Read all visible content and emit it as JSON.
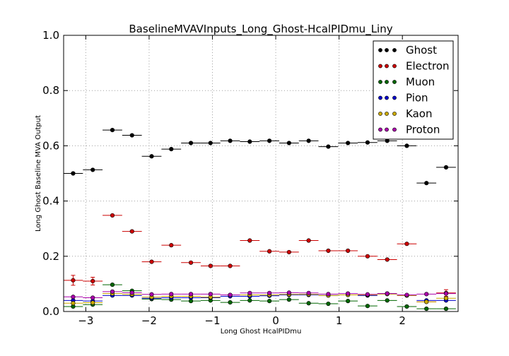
{
  "chart_data": {
    "type": "scatter",
    "title": "BaselineMVAVInputs_Long_Ghost-HcalPIDmu_Liny",
    "xlabel": "Long Ghost HcalPIDmu",
    "ylabel": "Long Ghost Baseline MVA Output",
    "xlim": [
      -3.35,
      2.88
    ],
    "ylim": [
      0.0,
      1.0
    ],
    "xticks": [
      -3,
      -2,
      -1,
      0,
      1,
      2
    ],
    "xtick_labels": [
      "−3",
      "−2",
      "−1",
      "0",
      "1",
      "2"
    ],
    "yticks": [
      0.0,
      0.2,
      0.4,
      0.6,
      0.8,
      1.0
    ],
    "ytick_labels": [
      "0.0",
      "0.2",
      "0.4",
      "0.6",
      "0.8",
      "1.0"
    ],
    "grid": true,
    "legend_position": "top-right",
    "bin_half_width": 0.155,
    "x": [
      -3.2,
      -2.89,
      -2.58,
      -2.27,
      -1.96,
      -1.65,
      -1.34,
      -1.03,
      -0.72,
      -0.41,
      -0.1,
      0.21,
      0.52,
      0.83,
      1.14,
      1.45,
      1.76,
      2.07,
      2.38,
      2.69
    ],
    "series": [
      {
        "name": "Ghost",
        "color": "#000000",
        "values": [
          0.5,
          0.513,
          0.657,
          0.638,
          0.562,
          0.588,
          0.61,
          0.61,
          0.618,
          0.615,
          0.618,
          0.61,
          0.618,
          0.597,
          0.61,
          0.612,
          0.618,
          0.6,
          0.465,
          0.522
        ],
        "errors": [
          0.005,
          0.005,
          0.004,
          0.004,
          0.004,
          0.004,
          0.003,
          0.003,
          0.003,
          0.003,
          0.003,
          0.003,
          0.003,
          0.003,
          0.003,
          0.003,
          0.003,
          0.004,
          0.005,
          0.005
        ]
      },
      {
        "name": "Electron",
        "color": "#cc0000",
        "values": [
          0.113,
          0.11,
          0.348,
          0.29,
          0.18,
          0.24,
          0.177,
          0.165,
          0.165,
          0.257,
          0.218,
          0.215,
          0.257,
          0.22,
          0.22,
          0.2,
          0.188,
          0.245,
          0.035,
          0.067
        ],
        "errors": [
          0.018,
          0.014,
          0.005,
          0.004,
          0.004,
          0.004,
          0.003,
          0.003,
          0.003,
          0.003,
          0.003,
          0.003,
          0.003,
          0.003,
          0.003,
          0.003,
          0.003,
          0.004,
          0.005,
          0.012
        ]
      },
      {
        "name": "Muon",
        "color": "#006600",
        "values": [
          0.018,
          0.025,
          0.097,
          0.075,
          0.045,
          0.043,
          0.038,
          0.04,
          0.033,
          0.04,
          0.038,
          0.043,
          0.03,
          0.028,
          0.038,
          0.02,
          0.04,
          0.018,
          0.01,
          0.01
        ],
        "errors": [
          0.003,
          0.003,
          0.003,
          0.003,
          0.002,
          0.002,
          0.002,
          0.002,
          0.002,
          0.002,
          0.002,
          0.002,
          0.002,
          0.002,
          0.002,
          0.002,
          0.002,
          0.002,
          0.002,
          0.002
        ]
      },
      {
        "name": "Pion",
        "color": "#0000cc",
        "values": [
          0.04,
          0.038,
          0.058,
          0.058,
          0.048,
          0.05,
          0.05,
          0.05,
          0.055,
          0.055,
          0.057,
          0.06,
          0.06,
          0.058,
          0.06,
          0.058,
          0.065,
          0.058,
          0.04,
          0.04
        ],
        "errors": [
          0.002,
          0.002,
          0.002,
          0.002,
          0.002,
          0.002,
          0.002,
          0.002,
          0.002,
          0.002,
          0.002,
          0.002,
          0.002,
          0.002,
          0.002,
          0.002,
          0.002,
          0.002,
          0.002,
          0.002
        ]
      },
      {
        "name": "Kaon",
        "color": "#ccaa00",
        "values": [
          0.03,
          0.032,
          0.065,
          0.062,
          0.052,
          0.055,
          0.055,
          0.052,
          0.06,
          0.06,
          0.06,
          0.062,
          0.062,
          0.058,
          0.06,
          0.06,
          0.063,
          0.058,
          0.035,
          0.048
        ],
        "errors": [
          0.002,
          0.002,
          0.002,
          0.002,
          0.002,
          0.002,
          0.002,
          0.002,
          0.002,
          0.002,
          0.002,
          0.002,
          0.002,
          0.002,
          0.002,
          0.002,
          0.002,
          0.002,
          0.002,
          0.002
        ]
      },
      {
        "name": "Proton",
        "color": "#aa00aa",
        "values": [
          0.053,
          0.05,
          0.072,
          0.068,
          0.062,
          0.063,
          0.063,
          0.063,
          0.06,
          0.067,
          0.067,
          0.068,
          0.067,
          0.063,
          0.065,
          0.062,
          0.065,
          0.06,
          0.063,
          0.065
        ],
        "errors": [
          0.002,
          0.002,
          0.002,
          0.002,
          0.002,
          0.002,
          0.002,
          0.002,
          0.002,
          0.002,
          0.002,
          0.002,
          0.002,
          0.002,
          0.002,
          0.002,
          0.002,
          0.002,
          0.002,
          0.002
        ]
      }
    ]
  }
}
